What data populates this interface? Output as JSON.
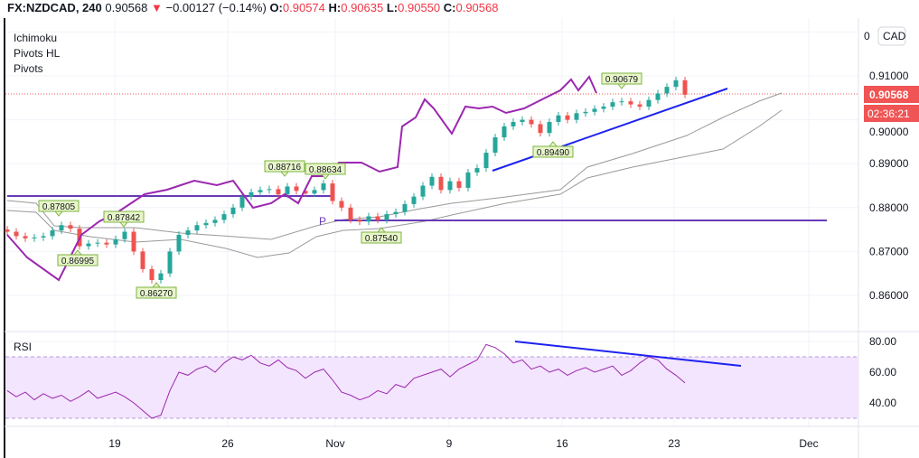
{
  "header": {
    "symbol": "FX:NZDCAD, 240",
    "last": "0.90568",
    "change": "−0.00127 (−0.14%)",
    "o_label": "O:",
    "o": "0.90574",
    "h_label": "H:",
    "h": "0.90635",
    "l_label": "L:",
    "l": "0.90550",
    "c_label": "C:",
    "c": "0.90568",
    "direction_icon": "triangle-down-icon"
  },
  "indicators": [
    "Ichimoku",
    "Pivots HL",
    "Pivots"
  ],
  "currency_button": "CAD",
  "price_axis": {
    "ticks": [
      "0.91000",
      "0.90000",
      "0.89000",
      "0.88000",
      "0.87000",
      "0.86000"
    ],
    "top_partial": "0",
    "current_price": "0.90568",
    "countdown": "02:36:21"
  },
  "rsi": {
    "label": "RSI",
    "ticks": [
      "80.00",
      "60.00",
      "40.00"
    ],
    "band": [
      30,
      70
    ]
  },
  "time_axis": [
    "19",
    "26",
    "Nov",
    "9",
    "16",
    "23",
    "Dec"
  ],
  "pivot_labels": [
    "0.87805",
    "0.87842",
    "0.86995",
    "0.86270",
    "0.88716",
    "0.88634",
    "0.87540",
    "0.89490",
    "0.90679"
  ],
  "pivot_marker": "P",
  "colors": {
    "up": "#26a69a",
    "down": "#ef5350",
    "chikou": "#9c27b0",
    "pivot_line": "#673ab7",
    "trendline": "#1e22f0",
    "rsi_line": "#9c27b0",
    "rsi_band": "#f3e5fd",
    "cloud_line": "#888888",
    "price_badge": "#f05454"
  },
  "chart_data": {
    "type": "candlestick",
    "ylim": [
      0.855,
      0.912
    ],
    "closes": [
      0.8745,
      0.8735,
      0.873,
      0.8732,
      0.8735,
      0.8748,
      0.876,
      0.8752,
      0.8712,
      0.8718,
      0.872,
      0.8716,
      0.8728,
      0.8745,
      0.87,
      0.866,
      0.8635,
      0.865,
      0.87,
      0.8738,
      0.8748,
      0.876,
      0.8765,
      0.8772,
      0.8785,
      0.88,
      0.8825,
      0.8835,
      0.884,
      0.8842,
      0.883,
      0.8848,
      0.8838,
      0.8832,
      0.884,
      0.8855,
      0.8815,
      0.88,
      0.8772,
      0.8768,
      0.878,
      0.8772,
      0.8785,
      0.879,
      0.8808,
      0.8825,
      0.885,
      0.887,
      0.884,
      0.886,
      0.8845,
      0.888,
      0.889,
      0.8925,
      0.896,
      0.8985,
      0.8995,
      0.9,
      0.899,
      0.897,
      0.8995,
      0.901,
      0.9,
      0.9015,
      0.9018,
      0.9025,
      0.903,
      0.904,
      0.9042,
      0.9035,
      0.903,
      0.9045,
      0.906,
      0.9075,
      0.909,
      0.9057
    ],
    "pivot_levels": [
      0.8827,
      0.8772
    ],
    "rsi_values": [
      48,
      44,
      47,
      42,
      46,
      43,
      45,
      41,
      44,
      48,
      43,
      45,
      47,
      44,
      40,
      35,
      30,
      32,
      48,
      60,
      58,
      62,
      64,
      60,
      66,
      70,
      68,
      71,
      66,
      64,
      68,
      63,
      61,
      56,
      60,
      62,
      55,
      47,
      45,
      42,
      44,
      48,
      46,
      52,
      50,
      56,
      58,
      60,
      62,
      57,
      62,
      65,
      68,
      78,
      76,
      72,
      66,
      68,
      62,
      64,
      60,
      62,
      58,
      61,
      63,
      60,
      62,
      64,
      58,
      61,
      66,
      70,
      68,
      62,
      58,
      53
    ]
  }
}
